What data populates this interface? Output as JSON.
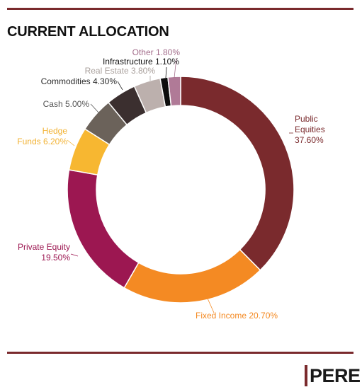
{
  "title": "CURRENT ALLOCATION",
  "logo": {
    "text": "PERE",
    "accent_color": "#7a2a2d"
  },
  "chart_data": {
    "type": "pie",
    "variant": "donut",
    "title": "CURRENT ALLOCATION",
    "slices": [
      {
        "name": "Public Equities",
        "value": 37.6,
        "value_label": "37.60%",
        "color": "#7a2a2d"
      },
      {
        "name": "Fixed Income",
        "value": 20.7,
        "value_label": "20.70%",
        "color": "#f48a23"
      },
      {
        "name": "Private Equity",
        "value": 19.5,
        "value_label": "19.50%",
        "color": "#9c1751"
      },
      {
        "name": "Hedge Funds",
        "value": 6.2,
        "value_label": "6.20%",
        "color": "#f7b731"
      },
      {
        "name": "Cash",
        "value": 5.0,
        "value_label": "5.00%",
        "color": "#6b625a"
      },
      {
        "name": "Commodities",
        "value": 4.3,
        "value_label": "4.30%",
        "color": "#3b2f2f"
      },
      {
        "name": "Real Estate",
        "value": 3.8,
        "value_label": "3.80%",
        "color": "#bcb0ad"
      },
      {
        "name": "Infrastructure",
        "value": 1.1,
        "value_label": "1.10%",
        "color": "#0d0d0d"
      },
      {
        "name": "Other",
        "value": 1.8,
        "value_label": "1.80%",
        "color": "#b07a97"
      }
    ],
    "label_colors": {
      "Public Equities": "#7a2a2d",
      "Fixed Income": "#f48a23",
      "Private Equity": "#9c1751",
      "Hedge Funds": "#f2b233",
      "Cash": "#555555",
      "Commodities": "#2b2b2b",
      "Real Estate": "#a9a09c",
      "Infrastructure": "#111111",
      "Other": "#a36d8b"
    }
  }
}
